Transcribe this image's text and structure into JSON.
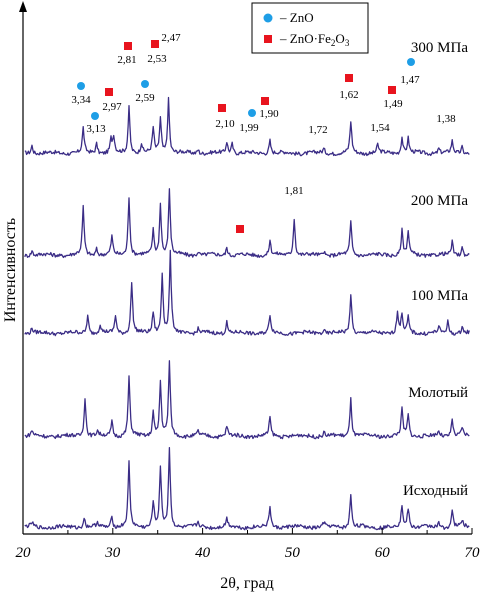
{
  "chart_data": {
    "type": "line",
    "xlabel": "2θ, град",
    "ylabel": "Интенсивность",
    "xlim": [
      20,
      70
    ],
    "x_ticks": [
      "20",
      "30",
      "40",
      "50",
      "60",
      "70"
    ],
    "y_ticks": false,
    "grid": false,
    "trace_color": "#3b2d86",
    "legend": {
      "position": "top-center",
      "entries": [
        {
          "marker": "circle",
          "color": "#1e9ee6",
          "label": "– ZnO"
        },
        {
          "marker": "square",
          "color": "#e8141e",
          "label": "– ZnO·Fe",
          "sub1": "2",
          "mid": "O",
          "sub2": "3"
        }
      ]
    },
    "series": [
      {
        "name": "300 МПа",
        "peaks": [
          [
            21.0,
            0.1
          ],
          [
            26.7,
            0.3
          ],
          [
            28.2,
            0.12
          ],
          [
            29.8,
            0.16
          ],
          [
            30.1,
            0.2
          ],
          [
            31.8,
            0.56
          ],
          [
            33.2,
            0.12
          ],
          [
            34.5,
            0.3
          ],
          [
            35.3,
            0.42
          ],
          [
            36.2,
            0.66
          ],
          [
            39.5,
            0.05
          ],
          [
            42.7,
            0.14
          ],
          [
            43.3,
            0.12
          ],
          [
            47.5,
            0.16
          ],
          [
            53.5,
            0.05
          ],
          [
            56.5,
            0.38
          ],
          [
            59.5,
            0.1
          ],
          [
            62.2,
            0.2
          ],
          [
            62.9,
            0.18
          ],
          [
            66.3,
            0.06
          ],
          [
            67.8,
            0.14
          ],
          [
            68.9,
            0.08
          ]
        ]
      },
      {
        "name": "200 МПа",
        "peaks": [
          [
            21.0,
            0.06
          ],
          [
            26.7,
            0.58
          ],
          [
            28.2,
            0.08
          ],
          [
            29.9,
            0.22
          ],
          [
            31.8,
            0.72
          ],
          [
            34.5,
            0.3
          ],
          [
            35.3,
            0.62
          ],
          [
            36.3,
            0.8
          ],
          [
            39.5,
            0.05
          ],
          [
            42.7,
            0.1
          ],
          [
            47.5,
            0.18
          ],
          [
            50.2,
            0.46
          ],
          [
            53.5,
            0.05
          ],
          [
            56.5,
            0.4
          ],
          [
            62.2,
            0.3
          ],
          [
            62.9,
            0.28
          ],
          [
            67.8,
            0.16
          ],
          [
            68.9,
            0.1
          ]
        ]
      },
      {
        "name": "100 МПа",
        "peaks": [
          [
            21.0,
            0.06
          ],
          [
            27.2,
            0.22
          ],
          [
            28.6,
            0.1
          ],
          [
            30.3,
            0.22
          ],
          [
            32.1,
            0.62
          ],
          [
            34.5,
            0.26
          ],
          [
            35.5,
            0.72
          ],
          [
            36.4,
            0.96
          ],
          [
            39.5,
            0.05
          ],
          [
            42.7,
            0.14
          ],
          [
            47.5,
            0.22
          ],
          [
            53.5,
            0.05
          ],
          [
            56.5,
            0.48
          ],
          [
            61.7,
            0.26
          ],
          [
            62.2,
            0.22
          ],
          [
            62.9,
            0.18
          ],
          [
            66.3,
            0.06
          ],
          [
            67.3,
            0.14
          ],
          [
            68.9,
            0.08
          ]
        ]
      },
      {
        "name": "Молотый",
        "peaks": [
          [
            21.0,
            0.06
          ],
          [
            26.9,
            0.48
          ],
          [
            28.3,
            0.06
          ],
          [
            29.9,
            0.18
          ],
          [
            31.8,
            0.72
          ],
          [
            34.5,
            0.3
          ],
          [
            35.3,
            0.66
          ],
          [
            36.3,
            0.9
          ],
          [
            39.5,
            0.05
          ],
          [
            42.7,
            0.12
          ],
          [
            47.5,
            0.22
          ],
          [
            53.5,
            0.05
          ],
          [
            56.5,
            0.46
          ],
          [
            62.2,
            0.32
          ],
          [
            62.9,
            0.26
          ],
          [
            66.3,
            0.06
          ],
          [
            67.8,
            0.22
          ],
          [
            68.9,
            0.1
          ]
        ]
      },
      {
        "name": "Исходный",
        "peaks": [
          [
            21.0,
            0.05
          ],
          [
            26.8,
            0.12
          ],
          [
            28.3,
            0.05
          ],
          [
            29.9,
            0.14
          ],
          [
            31.8,
            0.78
          ],
          [
            34.5,
            0.32
          ],
          [
            35.3,
            0.72
          ],
          [
            36.3,
            0.96
          ],
          [
            39.5,
            0.05
          ],
          [
            42.7,
            0.1
          ],
          [
            47.5,
            0.26
          ],
          [
            53.5,
            0.05
          ],
          [
            56.5,
            0.4
          ],
          [
            62.2,
            0.26
          ],
          [
            62.9,
            0.24
          ],
          [
            66.3,
            0.05
          ],
          [
            67.8,
            0.2
          ],
          [
            68.9,
            0.08
          ]
        ]
      }
    ],
    "annotations": {
      "300 МПа": [
        {
          "x": 26.7,
          "label": "3,34",
          "marker": "circle"
        },
        {
          "x": 28.2,
          "label": "3,13",
          "marker": "circle"
        },
        {
          "x": 29.8,
          "label": "2,97",
          "marker": "square"
        },
        {
          "x": 31.8,
          "label": "2,81",
          "marker": "square"
        },
        {
          "x": 33.2,
          "label": "2,59",
          "marker": "circle"
        },
        {
          "x": 34.5,
          "label": "2,53",
          "marker": "square"
        },
        {
          "x": 35.3,
          "label": "2,47",
          "marker": "none"
        },
        {
          "x": 42.7,
          "label": "2,10",
          "marker": "square"
        },
        {
          "x": 45.4,
          "label": "1,99",
          "marker": "circle"
        },
        {
          "x": 47.5,
          "label": "1,90",
          "marker": "square"
        },
        {
          "x": 53.0,
          "label": "1,72",
          "marker": "none"
        },
        {
          "x": 56.5,
          "label": "1,62",
          "marker": "square"
        },
        {
          "x": 59.5,
          "label": "1,54",
          "marker": "none"
        },
        {
          "x": 61.8,
          "label": "1,49",
          "marker": "square"
        },
        {
          "x": 63.3,
          "label": "1,47",
          "marker": "circle"
        },
        {
          "x": 67.0,
          "label": "1,38",
          "marker": "none"
        }
      ],
      "200 МПа": [
        {
          "x": 50.2,
          "label": "1,81",
          "marker": "none"
        },
        {
          "x": 43.8,
          "label": "",
          "marker": "square"
        }
      ]
    }
  }
}
